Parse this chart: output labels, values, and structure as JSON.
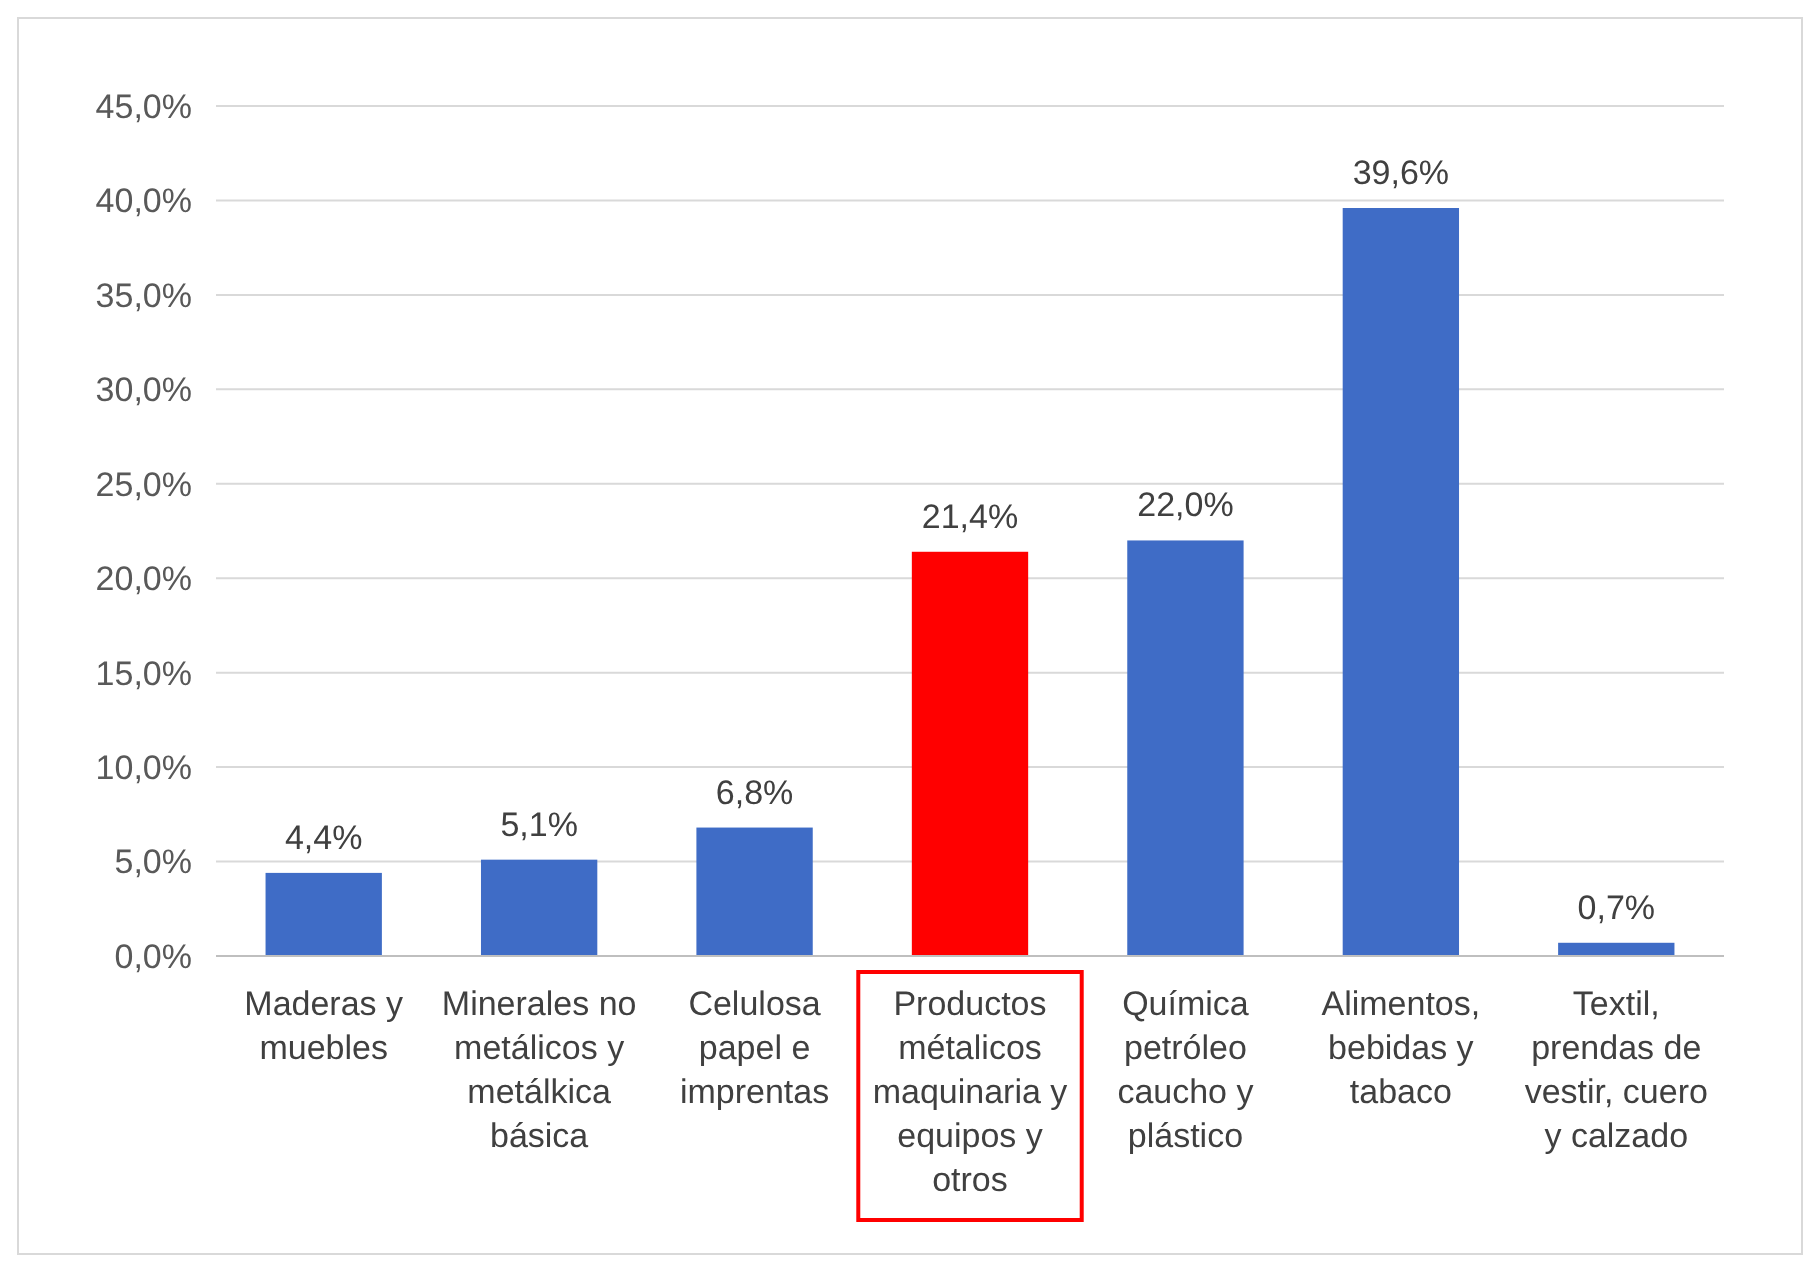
{
  "chart_data": {
    "type": "bar",
    "categories": [
      "Maderas y muebles",
      "Minerales no metálicos y metálkica básica",
      "Celulosa papel e imprentas",
      "Productos métalicos maquinaria y equipos y otros",
      "Química petróleo caucho y plástico",
      "Alimentos, bebidas y tabaco",
      "Textil, prendas de vestir, cuero y calzado"
    ],
    "values": [
      4.4,
      5.1,
      6.8,
      21.4,
      22.0,
      39.6,
      0.7
    ],
    "value_labels": [
      "4,4%",
      "5,1%",
      "6,8%",
      "21,4%",
      "22,0%",
      "39,6%",
      "0,7%"
    ],
    "colors": [
      "#3f6cc6",
      "#3f6cc6",
      "#3f6cc6",
      "#ff0000",
      "#3f6cc6",
      "#3f6cc6",
      "#3f6cc6"
    ],
    "ylim": [
      0,
      45
    ],
    "yticks": [
      {
        "value": 0,
        "label": "0,0%"
      },
      {
        "value": 5,
        "label": "5,0%"
      },
      {
        "value": 10,
        "label": "10,0%"
      },
      {
        "value": 15,
        "label": "15,0%"
      },
      {
        "value": 20,
        "label": "20,0%"
      },
      {
        "value": 25,
        "label": "25,0%"
      },
      {
        "value": 30,
        "label": "30,0%"
      },
      {
        "value": 35,
        "label": "35,0%"
      },
      {
        "value": 40,
        "label": "40,0%"
      },
      {
        "value": 45,
        "label": "45,0%"
      }
    ],
    "grid": "y"
  }
}
